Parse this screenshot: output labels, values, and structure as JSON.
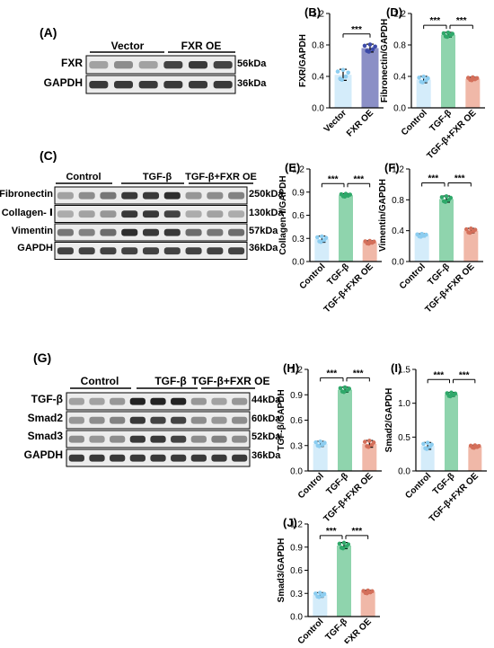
{
  "panels": {
    "A": {
      "letter": "(A)",
      "groups": [
        "Vector",
        "FXR OE"
      ],
      "rows": [
        {
          "label": "FXR",
          "kda": "56kDa"
        },
        {
          "label": "GAPDH",
          "kda": "36kDa"
        }
      ]
    },
    "C": {
      "letter": "(C)",
      "groups": [
        "Control",
        "TGF-β",
        "TGF-β+FXR OE"
      ],
      "rows": [
        {
          "label": "Fibronectin",
          "kda": "250kDa"
        },
        {
          "label": "Collagen- Ⅰ",
          "kda": "130kDa"
        },
        {
          "label": "Vimentin",
          "kda": "57kDa"
        },
        {
          "label": "GAPDH",
          "kda": "36kDa"
        }
      ]
    },
    "G": {
      "letter": "(G)",
      "groups": [
        "Control",
        "TGF-β",
        "TGF-β+FXR OE"
      ],
      "rows": [
        {
          "label": "TGF-β",
          "kda": "44kDa"
        },
        {
          "label": "Smad2",
          "kda": "60kDa"
        },
        {
          "label": "Smad3",
          "kda": "52kDa"
        },
        {
          "label": "GAPDH",
          "kda": "36kDa"
        }
      ]
    }
  },
  "colors": {
    "light_blue": "#d4ecfa",
    "purple": "#8b8fc6",
    "green": "#8fd4ad",
    "salmon": "#f0b8a8",
    "dot_blue": "#8ccdf0",
    "dot_purple": "#3c4aa8",
    "dot_green": "#2fa86a",
    "dot_red": "#d46f5a"
  },
  "chart_data": [
    {
      "id": "B",
      "letter": "(B)",
      "type": "bar",
      "categories": [
        "Vector",
        "FXR OE"
      ],
      "values": [
        0.42,
        0.76
      ],
      "errors": [
        0.07,
        0.05
      ],
      "ylabel": "FXR/GAPDH",
      "ylim": [
        0,
        1.2
      ],
      "yticks": [
        "0.0",
        "0.4",
        "0.8",
        "1.2"
      ],
      "significance": [
        "***"
      ]
    },
    {
      "id": "D",
      "letter": "(D)",
      "type": "bar",
      "categories": [
        "Control",
        "TGF-β",
        "TGF-β+FXR OE"
      ],
      "values": [
        0.36,
        0.93,
        0.37
      ],
      "errors": [
        0.04,
        0.03,
        0.02
      ],
      "ylabel": "Fibronectin/GAPDH",
      "ylim": [
        0,
        1.2
      ],
      "yticks": [
        "0.0",
        "0.4",
        "0.8",
        "1.2"
      ],
      "significance": [
        "***",
        "***"
      ]
    },
    {
      "id": "E",
      "letter": "(E)",
      "type": "bar",
      "categories": [
        "Control",
        "TGF-β",
        "TGF-β+FXR OE"
      ],
      "values": [
        0.29,
        0.86,
        0.25
      ],
      "errors": [
        0.04,
        0.02,
        0.02
      ],
      "ylabel": "Collagen-Ⅰ/GAPDH",
      "ylim": [
        0,
        1.2
      ],
      "yticks": [
        "0.0",
        "0.3",
        "0.6",
        "0.9",
        "1.2"
      ],
      "significance": [
        "***",
        "***"
      ]
    },
    {
      "id": "F",
      "letter": "(F)",
      "type": "bar",
      "categories": [
        "Control",
        "TGF-β",
        "TGF-β+FXR OE"
      ],
      "values": [
        0.34,
        0.81,
        0.4
      ],
      "errors": [
        0.02,
        0.04,
        0.03
      ],
      "ylabel": "Vimentin/GAPDH",
      "ylim": [
        0,
        1.2
      ],
      "yticks": [
        "0.0",
        "0.4",
        "0.8",
        "1.2"
      ],
      "significance": [
        "***",
        "***"
      ]
    },
    {
      "id": "H",
      "letter": "(H)",
      "type": "bar",
      "categories": [
        "Control",
        "TGF-β",
        "TGF-β+FXR OE"
      ],
      "values": [
        0.32,
        0.96,
        0.32
      ],
      "errors": [
        0.03,
        0.03,
        0.04
      ],
      "ylabel": "TGF-β/GAPDH",
      "ylim": [
        0,
        1.2
      ],
      "yticks": [
        "0.0",
        "0.3",
        "0.6",
        "0.9",
        "1.2"
      ],
      "significance": [
        "***",
        "***"
      ]
    },
    {
      "id": "I",
      "letter": "(I)",
      "type": "bar",
      "categories": [
        "Control",
        "TGF-β",
        "TGF-β+FXR OE"
      ],
      "values": [
        0.37,
        1.13,
        0.36
      ],
      "errors": [
        0.05,
        0.03,
        0.02
      ],
      "ylabel": "Smad2/GAPDH",
      "ylim": [
        0,
        1.5
      ],
      "yticks": [
        "0.0",
        "0.5",
        "1.0",
        "1.5"
      ],
      "significance": [
        "***",
        "***"
      ]
    },
    {
      "id": "J",
      "letter": "(J)",
      "type": "bar",
      "categories": [
        "Control",
        "TGF-β",
        "TGF-β+FXR OE"
      ],
      "values": [
        0.28,
        0.92,
        0.32
      ],
      "errors": [
        0.03,
        0.04,
        0.02
      ],
      "ylabel": "Smad3/GAPDH",
      "ylim": [
        0,
        1.2
      ],
      "yticks": [
        "0.0",
        "0.3",
        "0.6",
        "0.9",
        "1.2"
      ],
      "significance": [
        "***",
        "***"
      ]
    }
  ]
}
